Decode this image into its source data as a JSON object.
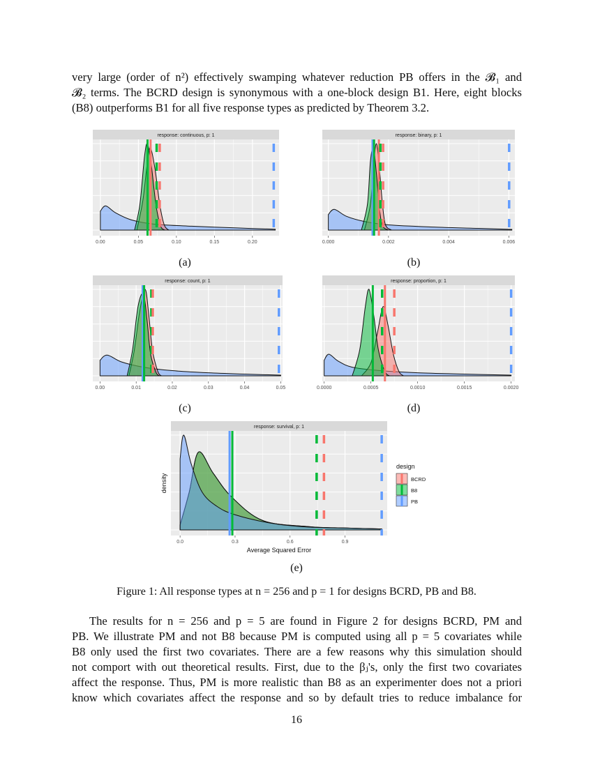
{
  "top_paragraph": [
    "very large (order of n²) effectively swamping whatever reduction PB offers in the 𝓑₁ and",
    "𝓑₂ terms. The BCRD design is synonymous with a one-block design B1. Here, eight blocks",
    "(B8) outperforms B1 for all five response types as predicted by Theorem 3.2."
  ],
  "subcaptions": [
    "(a)",
    "(b)",
    "(c)",
    "(d)",
    "(e)"
  ],
  "figure_caption": "Figure 1: All response types at n = 256 and p = 1 for designs BCRD, PB and B8.",
  "bottom_paragraph": [
    "The results for n = 256 and p = 5 are found in Figure 2 for designs BCRD, PM and",
    "PB. We illustrate PM and not B8 because PM is computed using all p = 5 covariates while",
    "B8 only used the first two covariates. There are a few reasons why this simulation should",
    "not comport with out theoretical results. First, due to the βⱼ's, only the first two covariates",
    "affect the response. Thus, PM is more realistic than B8 as an experimenter does not a priori",
    "know which covariates affect the response and so by default tries to reduce imbalance for"
  ],
  "page_number": "16",
  "colors": {
    "BCRD": "#F8766D",
    "B8": "#00BA38",
    "PB": "#619CFF",
    "panel_bg": "#EBEBEB",
    "strip_bg": "#D9D9D9"
  },
  "chart_data": [
    {
      "type": "area",
      "title": "response: continuous, p: 1",
      "xlim": [
        -0.01,
        0.235
      ],
      "xticks": [
        0.0,
        0.05,
        0.1,
        0.15,
        0.2
      ],
      "tick_labels": [
        "0.00",
        "0.05",
        "0.10",
        "0.15",
        "0.20"
      ],
      "series": [
        {
          "name": "PB",
          "points": [
            [
              0,
              0.22
            ],
            [
              0.007,
              0.28
            ],
            [
              0.02,
              0.2
            ],
            [
              0.04,
              0.12
            ],
            [
              0.07,
              0.07
            ],
            [
              0.12,
              0.045
            ],
            [
              0.18,
              0.025
            ],
            [
              0.23,
              0.01
            ]
          ]
        },
        {
          "name": "BCRD",
          "points": [
            [
              0.048,
              0
            ],
            [
              0.056,
              0.35
            ],
            [
              0.062,
              0.8
            ],
            [
              0.066,
              0.95
            ],
            [
              0.072,
              0.7
            ],
            [
              0.078,
              0.3
            ],
            [
              0.084,
              0.06
            ],
            [
              0.09,
              0
            ]
          ]
        },
        {
          "name": "B8",
          "points": [
            [
              0.045,
              0
            ],
            [
              0.052,
              0.3
            ],
            [
              0.058,
              0.85
            ],
            [
              0.062,
              1.0
            ],
            [
              0.067,
              0.75
            ],
            [
              0.073,
              0.3
            ],
            [
              0.079,
              0.05
            ],
            [
              0.085,
              0
            ]
          ]
        }
      ],
      "solid_lines": [
        {
          "design": "B8",
          "x": 0.062
        },
        {
          "design": "BCRD",
          "x": 0.066
        }
      ],
      "dashed_lines": [
        {
          "design": "B8",
          "x": 0.074
        },
        {
          "design": "BCRD",
          "x": 0.078
        },
        {
          "design": "PB",
          "x": 0.228
        }
      ]
    },
    {
      "type": "area",
      "title": "response: binary, p: 1",
      "xlim": [
        -0.0002,
        0.0062
      ],
      "xticks": [
        0,
        0.002,
        0.004,
        0.006
      ],
      "tick_labels": [
        "0.000",
        "0.002",
        "0.004",
        "0.006"
      ],
      "series": [
        {
          "name": "PB",
          "points": [
            [
              0,
              0.18
            ],
            [
              0.0002,
              0.24
            ],
            [
              0.0006,
              0.16
            ],
            [
              0.0012,
              0.1
            ],
            [
              0.002,
              0.06
            ],
            [
              0.0035,
              0.035
            ],
            [
              0.005,
              0.02
            ],
            [
              0.0061,
              0.008
            ]
          ]
        },
        {
          "name": "BCRD",
          "points": [
            [
              0.0012,
              0
            ],
            [
              0.0014,
              0.3
            ],
            [
              0.0015,
              0.75
            ],
            [
              0.0016,
              1.0
            ],
            [
              0.0017,
              0.7
            ],
            [
              0.0018,
              0.3
            ],
            [
              0.0019,
              0.06
            ],
            [
              0.0021,
              0
            ]
          ]
        },
        {
          "name": "B8",
          "points": [
            [
              0.0011,
              0
            ],
            [
              0.0013,
              0.3
            ],
            [
              0.0014,
              0.8
            ],
            [
              0.0015,
              0.95
            ],
            [
              0.0016,
              0.65
            ],
            [
              0.0017,
              0.25
            ],
            [
              0.0018,
              0.05
            ],
            [
              0.002,
              0
            ]
          ]
        }
      ],
      "solid_lines": [
        {
          "design": "PB",
          "x": 0.00147
        },
        {
          "design": "B8",
          "x": 0.00152
        },
        {
          "design": "BCRD",
          "x": 0.00168
        }
      ],
      "dashed_lines": [
        {
          "design": "B8",
          "x": 0.00173
        },
        {
          "design": "BCRD",
          "x": 0.00182
        },
        {
          "design": "PB",
          "x": 0.00601
        }
      ]
    },
    {
      "type": "area",
      "title": "response: count, p: 1",
      "xlim": [
        -0.002,
        0.0505
      ],
      "xticks": [
        0,
        0.01,
        0.02,
        0.03,
        0.04,
        0.05
      ],
      "tick_labels": [
        "0.00",
        "0.01",
        "0.02",
        "0.03",
        "0.04",
        "0.05"
      ],
      "series": [
        {
          "name": "PB",
          "points": [
            [
              0,
              0.18
            ],
            [
              0.002,
              0.24
            ],
            [
              0.006,
              0.16
            ],
            [
              0.012,
              0.1
            ],
            [
              0.02,
              0.06
            ],
            [
              0.03,
              0.035
            ],
            [
              0.04,
              0.02
            ],
            [
              0.05,
              0.008
            ]
          ]
        },
        {
          "name": "BCRD",
          "points": [
            [
              0.008,
              0
            ],
            [
              0.0095,
              0.3
            ],
            [
              0.011,
              0.75
            ],
            [
              0.0125,
              1.0
            ],
            [
              0.0135,
              0.7
            ],
            [
              0.0145,
              0.3
            ],
            [
              0.016,
              0.05
            ],
            [
              0.017,
              0
            ]
          ]
        },
        {
          "name": "B8",
          "points": [
            [
              0.0075,
              0
            ],
            [
              0.009,
              0.3
            ],
            [
              0.0105,
              0.8
            ],
            [
              0.012,
              0.95
            ],
            [
              0.013,
              0.65
            ],
            [
              0.014,
              0.25
            ],
            [
              0.0155,
              0.04
            ],
            [
              0.0165,
              0
            ]
          ]
        }
      ],
      "solid_lines": [
        {
          "design": "PB",
          "x": 0.0118
        },
        {
          "design": "B8",
          "x": 0.0122
        }
      ],
      "dashed_lines": [
        {
          "design": "B8",
          "x": 0.0142
        },
        {
          "design": "BCRD",
          "x": 0.0146
        },
        {
          "design": "PB",
          "x": 0.0495
        }
      ]
    },
    {
      "type": "area",
      "title": "response: proportion, p: 1",
      "xlim": [
        -2e-05,
        0.00204
      ],
      "xticks": [
        0,
        0.0005,
        0.001,
        0.0015,
        0.002
      ],
      "tick_labels": [
        "0.0000",
        "0.0005",
        "0.0010",
        "0.0015",
        "0.0020"
      ],
      "series": [
        {
          "name": "PB",
          "points": [
            [
              0,
              0.18
            ],
            [
              5e-05,
              0.25
            ],
            [
              0.00015,
              0.17
            ],
            [
              0.0003,
              0.1
            ],
            [
              0.0006,
              0.06
            ],
            [
              0.001,
              0.035
            ],
            [
              0.0015,
              0.02
            ],
            [
              0.002,
              0.008
            ]
          ]
        },
        {
          "name": "BCRD",
          "points": [
            [
              0.0004,
              0
            ],
            [
              0.0005,
              0.15
            ],
            [
              0.00057,
              0.5
            ],
            [
              0.00063,
              0.8
            ],
            [
              0.00068,
              0.6
            ],
            [
              0.00074,
              0.25
            ],
            [
              0.0008,
              0.05
            ],
            [
              0.00085,
              0
            ]
          ]
        },
        {
          "name": "B8",
          "points": [
            [
              0.0003,
              0
            ],
            [
              0.00038,
              0.3
            ],
            [
              0.00044,
              0.8
            ],
            [
              0.00048,
              1.0
            ],
            [
              0.00053,
              0.7
            ],
            [
              0.00058,
              0.3
            ],
            [
              0.00065,
              0.05
            ],
            [
              0.0007,
              0
            ]
          ]
        }
      ],
      "solid_lines": [
        {
          "design": "B8",
          "x": 0.00052
        },
        {
          "design": "BCRD",
          "x": 0.00065
        }
      ],
      "dashed_lines": [
        {
          "design": "B8",
          "x": 0.00062
        },
        {
          "design": "BCRD",
          "x": 0.00075
        },
        {
          "design": "PB",
          "x": 0.002
        }
      ]
    },
    {
      "type": "area",
      "title": "response: survival, p: 1",
      "xlabel": "Average Squared Error",
      "ylabel": "density",
      "xlim": [
        -0.05,
        1.13
      ],
      "xticks": [
        0,
        0.3,
        0.6,
        0.9
      ],
      "tick_labels": [
        "0.0",
        "0.3",
        "0.6",
        "0.9"
      ],
      "legend": {
        "title": "design",
        "entries": [
          "BCRD",
          "B8",
          "PB"
        ],
        "placement": "right"
      },
      "series": [
        {
          "name": "BCRD",
          "points": [
            [
              0,
              0.05
            ],
            [
              0.05,
              0.4
            ],
            [
              0.1,
              0.82
            ],
            [
              0.18,
              0.6
            ],
            [
              0.28,
              0.35
            ],
            [
              0.45,
              0.1
            ],
            [
              0.7,
              0.035
            ],
            [
              0.9,
              0.02
            ],
            [
              1.1,
              0.01
            ]
          ]
        },
        {
          "name": "B8",
          "points": [
            [
              0,
              0.05
            ],
            [
              0.05,
              0.4
            ],
            [
              0.1,
              0.82
            ],
            [
              0.18,
              0.6
            ],
            [
              0.28,
              0.35
            ],
            [
              0.45,
              0.1
            ],
            [
              0.7,
              0.035
            ],
            [
              0.9,
              0.02
            ],
            [
              1.1,
              0.01
            ]
          ]
        },
        {
          "name": "PB",
          "points": [
            [
              0,
              0.75
            ],
            [
              0.02,
              1.0
            ],
            [
              0.06,
              0.7
            ],
            [
              0.12,
              0.4
            ],
            [
              0.2,
              0.25
            ],
            [
              0.3,
              0.16
            ],
            [
              0.5,
              0.07
            ],
            [
              0.7,
              0.03
            ],
            [
              0.9,
              0.02
            ],
            [
              1.1,
              0.01
            ]
          ]
        }
      ],
      "solid_lines": [
        {
          "design": "PB",
          "x": 0.27
        },
        {
          "design": "B8",
          "x": 0.285
        }
      ],
      "dashed_lines": [
        {
          "design": "B8",
          "x": 0.745
        },
        {
          "design": "BCRD",
          "x": 0.785
        },
        {
          "design": "PB",
          "x": 1.1
        }
      ]
    }
  ]
}
